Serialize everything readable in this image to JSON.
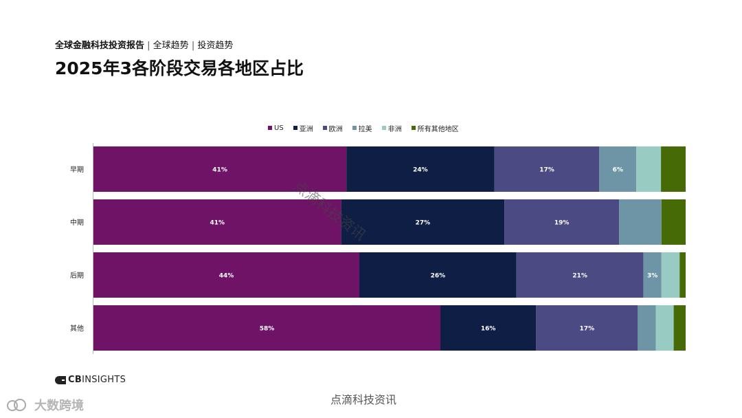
{
  "header": {
    "report_name": "全球金融科技投资报告",
    "sep1": " | ",
    "section1": "全球趋势",
    "sep2": " | ",
    "section2": "投资趋势"
  },
  "page_title": "2025年3各阶段交易各地区占比",
  "colors": {
    "US": "#6e1366",
    "亚洲": "#0f1e45",
    "欧洲": "#4c4a82",
    "拉美": "#6d95a6",
    "非洲": "#98ccc2",
    "所有其他地区": "#456a06"
  },
  "chart_data": {
    "type": "bar",
    "orientation": "horizontal",
    "stacked": true,
    "normalized": true,
    "legend_position": "top",
    "categories": [
      "早期",
      "中期",
      "后期",
      "其他"
    ],
    "series": [
      {
        "name": "US",
        "values": [
          41,
          41,
          44,
          58
        ],
        "labels": [
          "41%",
          "41%",
          "44%",
          "58%"
        ]
      },
      {
        "name": "亚洲",
        "values": [
          24,
          27,
          26,
          16
        ],
        "labels": [
          "24%",
          "27%",
          "26%",
          "16%"
        ]
      },
      {
        "name": "欧洲",
        "values": [
          17,
          19,
          21,
          17
        ],
        "labels": [
          "17%",
          "19%",
          "21%",
          "17%"
        ]
      },
      {
        "name": "拉美",
        "values": [
          6,
          7,
          3,
          3
        ],
        "labels": [
          "6%",
          "",
          "3%",
          ""
        ]
      },
      {
        "name": "非洲",
        "values": [
          4,
          0,
          3,
          3
        ],
        "labels": [
          "",
          "",
          "",
          ""
        ]
      },
      {
        "name": "所有其他地区",
        "values": [
          4,
          4,
          1,
          2
        ],
        "labels": [
          "",
          "",
          "",
          ""
        ]
      }
    ]
  },
  "watermark": "点滴科技资讯",
  "brand": {
    "prefix": "CB",
    "suffix": "INSIGHTS"
  },
  "footer_source": "点滴科技资讯",
  "bottom_logo_text": "大数跨境"
}
